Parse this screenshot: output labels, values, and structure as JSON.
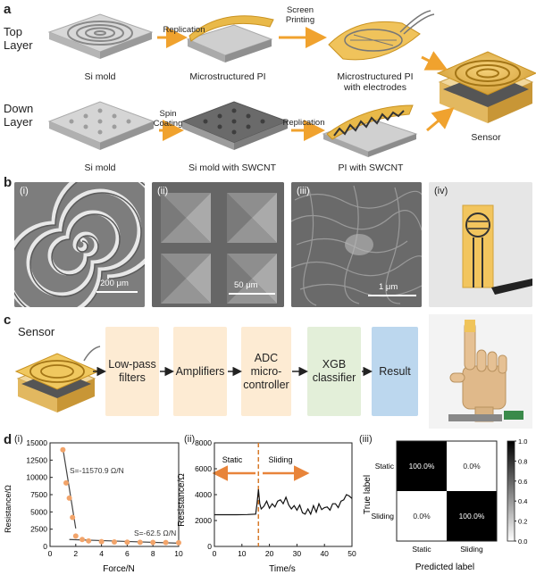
{
  "panel_a": {
    "label": "a",
    "top_layer": "Top\nLayer",
    "down_layer": "Down\nLayer",
    "captions": [
      "Si mold",
      "Microstructured PI",
      "Microstructured PI\nwith electrodes",
      "Si mold",
      "Si mold with SWCNT",
      "PI with SWCNT",
      "Sensor"
    ],
    "arrow_labels": [
      "Replication",
      "Screen\nPrinting",
      "Spin\nCoating",
      "Replication"
    ]
  },
  "panel_b": {
    "label": "b",
    "subs": [
      "(i)",
      "(ii)",
      "(iii)",
      "(iv)"
    ],
    "scales": [
      "200 μm",
      "50 μm",
      "1 μm"
    ]
  },
  "panel_c": {
    "label": "c",
    "sensor_label": "Sensor",
    "boxes": [
      "Low-pass\nfilters",
      "Amplifiers",
      "ADC\nmicro-\ncontroller",
      "XGB\nclassifier",
      "Result"
    ],
    "colors": {
      "peach": "#fdebd3",
      "green": "#e3efd9",
      "blue": "#bcd7ee"
    }
  },
  "panel_d": {
    "label": "d",
    "subs": [
      "(i)",
      "(ii)",
      "(iii)"
    ],
    "static_label": "Static",
    "sliding_label": "Sliding",
    "slope1": "S=-11570.9 Ω/N",
    "slope2": "S=-62.5 Ω/N",
    "colorbar_ticks": [
      "1.0",
      "0.8",
      "0.6",
      "0.4",
      "0.2",
      "0.0"
    ]
  },
  "chart_data": [
    {
      "type": "scatter",
      "xlabel": "Force/N",
      "ylabel": "Resistance/Ω",
      "xlim": [
        0,
        10
      ],
      "ylim": [
        0,
        15000
      ],
      "xticks": [
        "0",
        "2",
        "4",
        "6",
        "8",
        "10"
      ],
      "yticks": [
        "0",
        "2500",
        "5000",
        "7500",
        "10000",
        "12500",
        "15000"
      ],
      "x": [
        1.0,
        1.25,
        1.5,
        1.75,
        2.0,
        2.5,
        3.0,
        4.0,
        5.0,
        6.0,
        7.0,
        8.0,
        9.0,
        10.0
      ],
      "y": [
        14000,
        9200,
        7000,
        4200,
        1500,
        1000,
        800,
        700,
        650,
        620,
        600,
        580,
        560,
        540
      ],
      "fit_lines": [
        {
          "x": [
            1.0,
            2.0
          ],
          "y": [
            14200,
            2600
          ]
        },
        {
          "x": [
            1.5,
            10.0
          ],
          "y": [
            1000,
            470
          ]
        }
      ],
      "colors": {
        "points": "#f2a46a",
        "fit": "#444444"
      }
    },
    {
      "type": "line",
      "xlabel": "Time/s",
      "ylabel": "Resistance/Ω",
      "xlim": [
        0,
        50
      ],
      "ylim": [
        0,
        8000
      ],
      "xticks": [
        "0",
        "10",
        "20",
        "30",
        "40",
        "50"
      ],
      "yticks": [
        "0",
        "2000",
        "4000",
        "6000",
        "8000"
      ],
      "x": [
        0,
        4,
        8,
        12,
        15,
        15.5,
        16,
        16.5,
        17,
        18,
        19,
        20,
        21,
        22,
        23,
        24,
        25,
        26,
        27,
        28,
        29,
        30,
        31,
        32,
        33,
        34,
        35,
        36,
        37,
        38,
        39,
        40,
        41,
        42,
        43,
        44,
        45,
        46,
        47,
        48,
        49,
        50
      ],
      "y": [
        2450,
        2450,
        2450,
        2460,
        2500,
        3300,
        4400,
        3300,
        2900,
        3100,
        3500,
        2950,
        3300,
        3050,
        3500,
        3600,
        3300,
        3800,
        3200,
        2900,
        3150,
        2800,
        3200,
        2600,
        2500,
        2900,
        2500,
        3150,
        2650,
        3300,
        2850,
        3000,
        3050,
        2800,
        3300,
        3300,
        3000,
        3500,
        3600,
        4000,
        3900,
        3700
      ],
      "divider_x": 16,
      "colors": {
        "line": "#111111",
        "divider": "#d77a2a",
        "arrow": "#e8843a"
      }
    },
    {
      "type": "heatmap",
      "xlabel": "Predicted label",
      "ylabel": "True label",
      "categories": [
        "Static",
        "Sliding"
      ],
      "values": [
        [
          1.0,
          0.0
        ],
        [
          0.0,
          1.0
        ]
      ],
      "cell_labels": [
        [
          "100.0%",
          "0.0%"
        ],
        [
          "0.0%",
          "100.0%"
        ]
      ],
      "color_range": [
        0.0,
        1.0
      ]
    }
  ]
}
